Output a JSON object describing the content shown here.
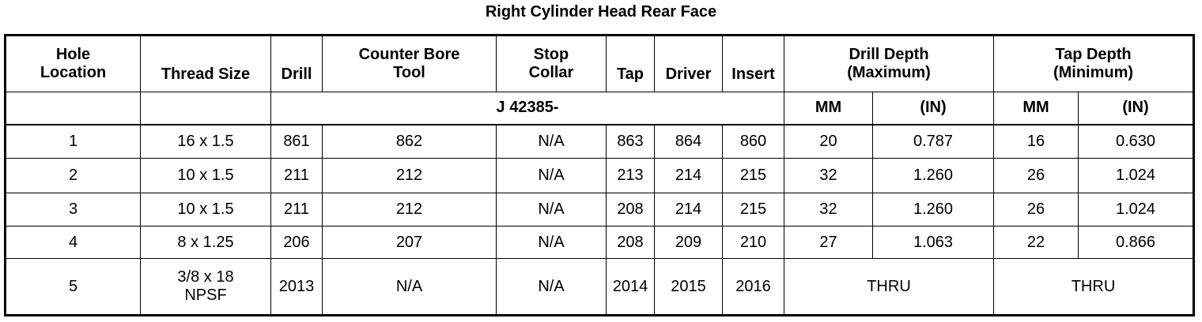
{
  "title": "Right Cylinder Head Rear Face",
  "headers": {
    "hole_location": [
      "Hole",
      "Location"
    ],
    "thread_size": "Thread Size",
    "drill": "Drill",
    "counter_bore_tool": [
      "Counter Bore",
      "Tool"
    ],
    "stop_collar": [
      "Stop",
      "Collar"
    ],
    "tap": "Tap",
    "driver": "Driver",
    "insert": "Insert",
    "drill_depth": [
      "Drill Depth",
      "(Maximum)"
    ],
    "tap_depth": [
      "Tap Depth",
      "(Minimum)"
    ]
  },
  "subheaders": {
    "tool_prefix": "J 42385-",
    "drill_mm": "MM",
    "drill_in": "(IN)",
    "tap_mm": "MM",
    "tap_in": "(IN)"
  },
  "rows": [
    {
      "hole": "1",
      "thread": [
        "16 x 1.5"
      ],
      "drill": "861",
      "counter_bore": "862",
      "stop_collar": "N/A",
      "tap": "863",
      "driver": "864",
      "insert": "860",
      "drill_mm": "20",
      "drill_in": "0.787",
      "tap_mm": "16",
      "tap_in": "0.630"
    },
    {
      "hole": "2",
      "thread": [
        "10 x 1.5"
      ],
      "drill": "211",
      "counter_bore": "212",
      "stop_collar": "N/A",
      "tap": "213",
      "driver": "214",
      "insert": "215",
      "drill_mm": "32",
      "drill_in": "1.260",
      "tap_mm": "26",
      "tap_in": "1.024"
    },
    {
      "hole": "3",
      "thread": [
        "10 x 1.5"
      ],
      "drill": "211",
      "counter_bore": "212",
      "stop_collar": "N/A",
      "tap": "208",
      "driver": "214",
      "insert": "215",
      "drill_mm": "32",
      "drill_in": "1.260",
      "tap_mm": "26",
      "tap_in": "1.024"
    },
    {
      "hole": "4",
      "thread": [
        "8 x 1.25"
      ],
      "drill": "206",
      "counter_bore": "207",
      "stop_collar": "N/A",
      "tap": "208",
      "driver": "209",
      "insert": "210",
      "drill_mm": "27",
      "drill_in": "1.063",
      "tap_mm": "22",
      "tap_in": "0.866"
    }
  ],
  "last_row": {
    "hole": "5",
    "thread": [
      "3/8 x 18",
      "NPSF"
    ],
    "drill": "2013",
    "counter_bore": "N/A",
    "stop_collar": "N/A",
    "tap": "2014",
    "driver": "2015",
    "insert": "2016",
    "drill_depth": "THRU",
    "tap_depth": "THRU"
  }
}
